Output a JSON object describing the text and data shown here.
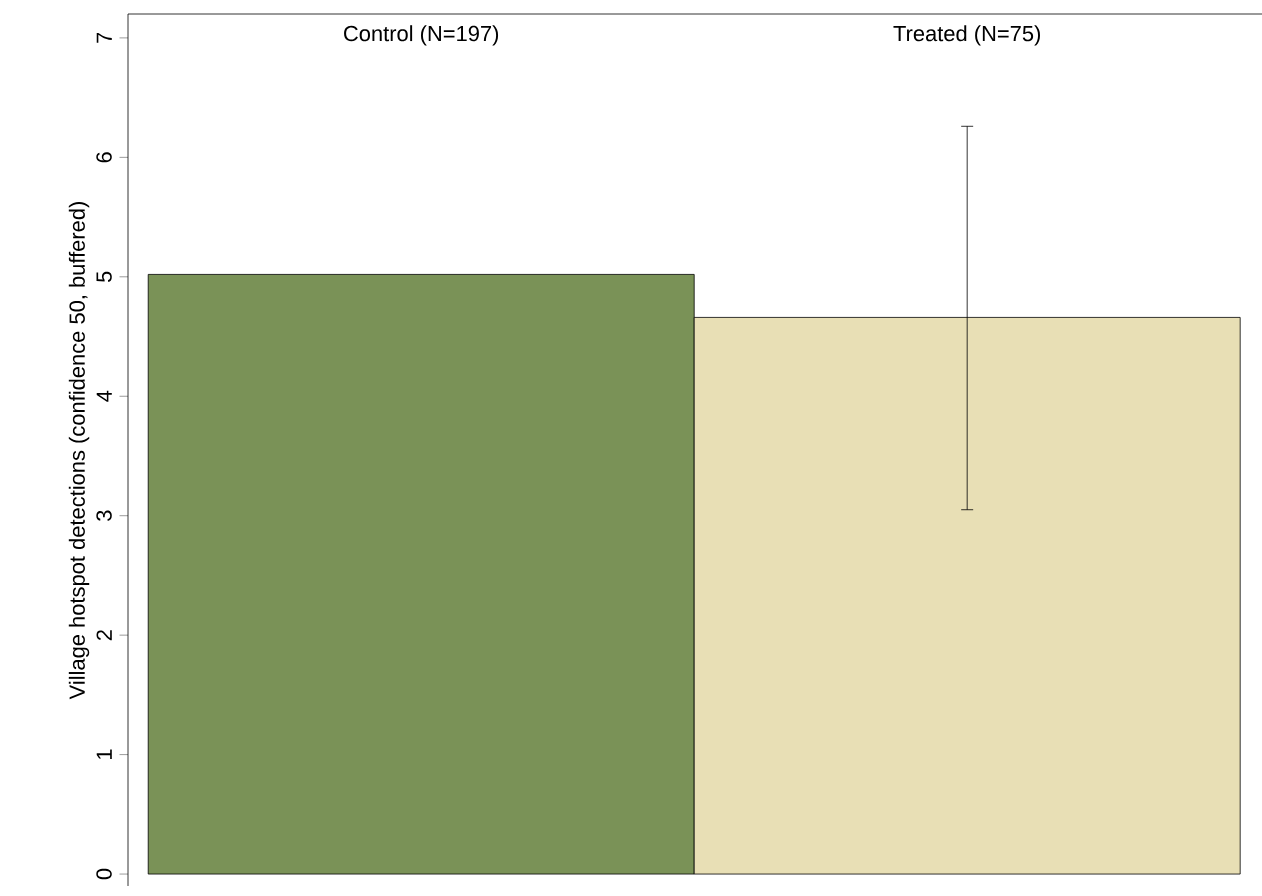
{
  "chart_data": {
    "type": "bar",
    "categories": [
      "Control (N=197)",
      "Treated (N=75)"
    ],
    "values": [
      5.02,
      4.66
    ],
    "colors": [
      "#7a9257",
      "#e8dfb5"
    ],
    "errors": [
      null,
      [
        3.05,
        6.26
      ]
    ],
    "ylabel": "Village hotspot detections (confidence 50, buffered)",
    "ylim": [
      -0.1,
      7.2
    ],
    "yticks": [
      0,
      1,
      2,
      3,
      4,
      5,
      6,
      7
    ]
  }
}
